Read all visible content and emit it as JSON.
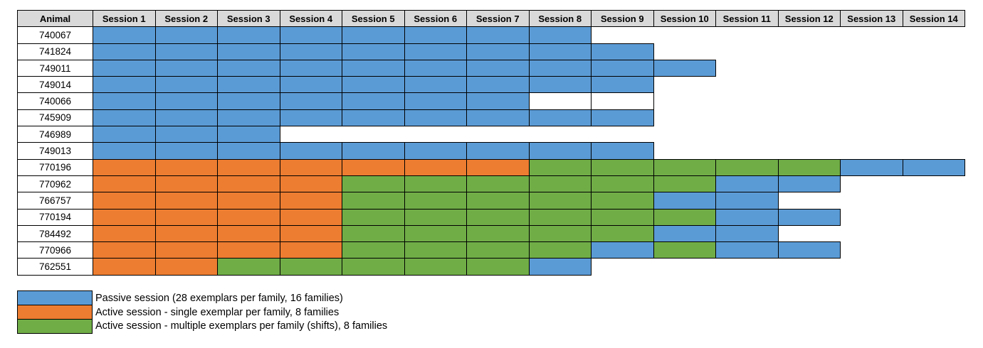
{
  "colors": {
    "passive_blue": "#5B9BD5",
    "active_orange": "#ED7D31",
    "active_green": "#70AD47",
    "header_bg": "#D9D9D9",
    "border": "#000000"
  },
  "chart_data": {
    "type": "table",
    "title": "",
    "columns": [
      "Animal",
      "Session 1",
      "Session 2",
      "Session 3",
      "Session 4",
      "Session 5",
      "Session 6",
      "Session 7",
      "Session 8",
      "Session 9",
      "Session 10",
      "Session 11",
      "Session 12",
      "Session 13",
      "Session 14"
    ],
    "cell_categories": {
      "b": "Passive session (28 exemplars per family, 16 families)",
      "o": "Active session - single exemplar per family, 8 families",
      "g": "Active session - multiple exemplars per family (shifts), 8 families",
      "e": "bordered empty cell",
      "": "no session"
    },
    "rows": [
      {
        "animal": "740067",
        "sessions": [
          "b",
          "b",
          "b",
          "b",
          "b",
          "b",
          "b",
          "b",
          "",
          "",
          "",
          "",
          "",
          ""
        ]
      },
      {
        "animal": "741824",
        "sessions": [
          "b",
          "b",
          "b",
          "b",
          "b",
          "b",
          "b",
          "b",
          "b",
          "",
          "",
          "",
          "",
          ""
        ]
      },
      {
        "animal": "749011",
        "sessions": [
          "b",
          "b",
          "b",
          "b",
          "b",
          "b",
          "b",
          "b",
          "b",
          "b",
          "",
          "",
          "",
          ""
        ]
      },
      {
        "animal": "749014",
        "sessions": [
          "b",
          "b",
          "b",
          "b",
          "b",
          "b",
          "b",
          "b",
          "b",
          "",
          "",
          "",
          "",
          ""
        ]
      },
      {
        "animal": "740066",
        "sessions": [
          "b",
          "b",
          "b",
          "b",
          "b",
          "b",
          "b",
          "e",
          "e",
          "",
          "",
          "",
          "",
          ""
        ]
      },
      {
        "animal": "745909",
        "sessions": [
          "b",
          "b",
          "b",
          "b",
          "b",
          "b",
          "b",
          "b",
          "b",
          "",
          "",
          "",
          "",
          ""
        ]
      },
      {
        "animal": "746989",
        "sessions": [
          "b",
          "b",
          "b",
          "",
          "",
          "",
          "",
          "",
          "",
          "",
          "",
          "",
          "",
          ""
        ]
      },
      {
        "animal": "749013",
        "sessions": [
          "b",
          "b",
          "b",
          "b",
          "b",
          "b",
          "b",
          "b",
          "b",
          "",
          "",
          "",
          "",
          ""
        ]
      },
      {
        "animal": "770196",
        "sessions": [
          "o",
          "o",
          "o",
          "o",
          "o",
          "o",
          "o",
          "g",
          "g",
          "g",
          "g",
          "g",
          "b",
          "b"
        ]
      },
      {
        "animal": "770962",
        "sessions": [
          "o",
          "o",
          "o",
          "o",
          "g",
          "g",
          "g",
          "g",
          "g",
          "g",
          "b",
          "b",
          "",
          ""
        ]
      },
      {
        "animal": "766757",
        "sessions": [
          "o",
          "o",
          "o",
          "o",
          "g",
          "g",
          "g",
          "g",
          "g",
          "b",
          "b",
          "",
          "",
          ""
        ]
      },
      {
        "animal": "770194",
        "sessions": [
          "o",
          "o",
          "o",
          "o",
          "g",
          "g",
          "g",
          "g",
          "g",
          "g",
          "b",
          "b",
          "",
          ""
        ]
      },
      {
        "animal": "784492",
        "sessions": [
          "o",
          "o",
          "o",
          "o",
          "g",
          "g",
          "g",
          "g",
          "g",
          "b",
          "b",
          "",
          "",
          ""
        ]
      },
      {
        "animal": "770966",
        "sessions": [
          "o",
          "o",
          "o",
          "o",
          "g",
          "g",
          "g",
          "g",
          "b",
          "g",
          "b",
          "b",
          "",
          ""
        ]
      },
      {
        "animal": "762551",
        "sessions": [
          "o",
          "o",
          "g",
          "g",
          "g",
          "g",
          "g",
          "b",
          "",
          "",
          "",
          "",
          "",
          ""
        ]
      }
    ]
  },
  "legend": {
    "items": [
      {
        "color": "passive_blue",
        "label": "Passive session (28 exemplars per family, 16 families)"
      },
      {
        "color": "active_orange",
        "label": "Active session - single exemplar per family, 8 families"
      },
      {
        "color": "active_green",
        "label": "Active session - multiple exemplars per family (shifts), 8 families"
      }
    ]
  }
}
